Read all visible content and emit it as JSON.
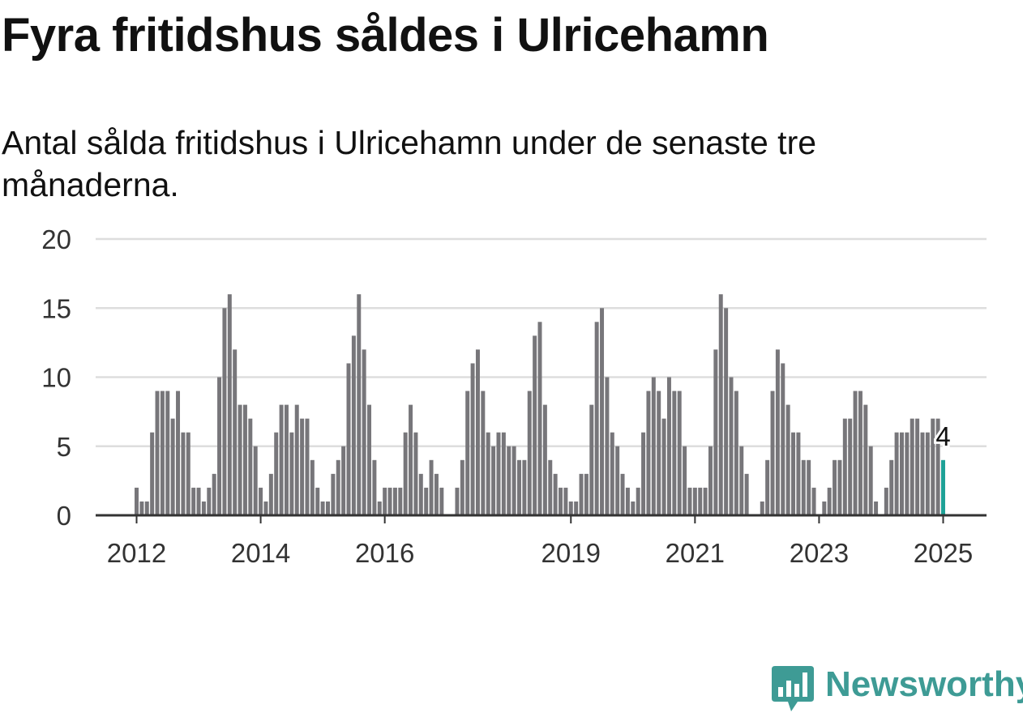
{
  "title": "Fyra fritidshus såldes i Ulricehamn",
  "subtitle": "Antal sålda fritidshus i Ulricehamn under de senaste tre månaderna.",
  "brand": {
    "name": "Newsworthy",
    "color": "#3e9b95",
    "icon": "chart-bubble-icon"
  },
  "colors": {
    "bar": "#77767a",
    "highlight": "#1ea197",
    "grid": "#dddddd",
    "axis": "#333333",
    "text": "#333333"
  },
  "chart_data": {
    "type": "bar",
    "title": "Fyra fritidshus såldes i Ulricehamn",
    "subtitle": "Antal sålda fritidshus i Ulricehamn under de senaste tre månaderna.",
    "xlabel": "",
    "ylabel": "",
    "ylim": [
      0,
      20
    ],
    "yticks": [
      "0",
      "5",
      "10",
      "15",
      "20"
    ],
    "xticks": [
      "2012",
      "2014",
      "2016",
      "2019",
      "2021",
      "2023",
      "2025"
    ],
    "grid": true,
    "x_start": "2012-01",
    "x_end": "2025-01",
    "annotation": {
      "label": "4",
      "month": "2025-01"
    },
    "values": [
      2,
      1,
      1,
      6,
      9,
      9,
      9,
      7,
      9,
      6,
      6,
      2,
      2,
      1,
      2,
      3,
      10,
      15,
      16,
      12,
      8,
      8,
      7,
      5,
      2,
      1,
      3,
      6,
      8,
      8,
      6,
      8,
      7,
      7,
      4,
      2,
      1,
      1,
      3,
      4,
      5,
      11,
      13,
      16,
      12,
      8,
      4,
      1,
      2,
      2,
      2,
      2,
      6,
      8,
      6,
      3,
      2,
      4,
      3,
      2,
      null,
      null,
      2,
      4,
      9,
      11,
      12,
      9,
      6,
      5,
      6,
      6,
      5,
      5,
      4,
      4,
      9,
      13,
      14,
      8,
      4,
      3,
      2,
      2,
      1,
      1,
      3,
      3,
      8,
      14,
      15,
      10,
      6,
      5,
      3,
      2,
      1,
      2,
      6,
      9,
      10,
      9,
      7,
      10,
      9,
      9,
      5,
      2,
      2,
      2,
      2,
      5,
      12,
      16,
      15,
      10,
      9,
      5,
      3,
      null,
      null,
      1,
      4,
      9,
      12,
      11,
      8,
      6,
      6,
      4,
      4,
      2,
      0,
      1,
      2,
      4,
      4,
      7,
      7,
      9,
      9,
      8,
      5,
      1,
      0,
      2,
      4,
      6,
      6,
      6,
      7,
      7,
      6,
      6,
      7,
      7,
      4
    ]
  }
}
